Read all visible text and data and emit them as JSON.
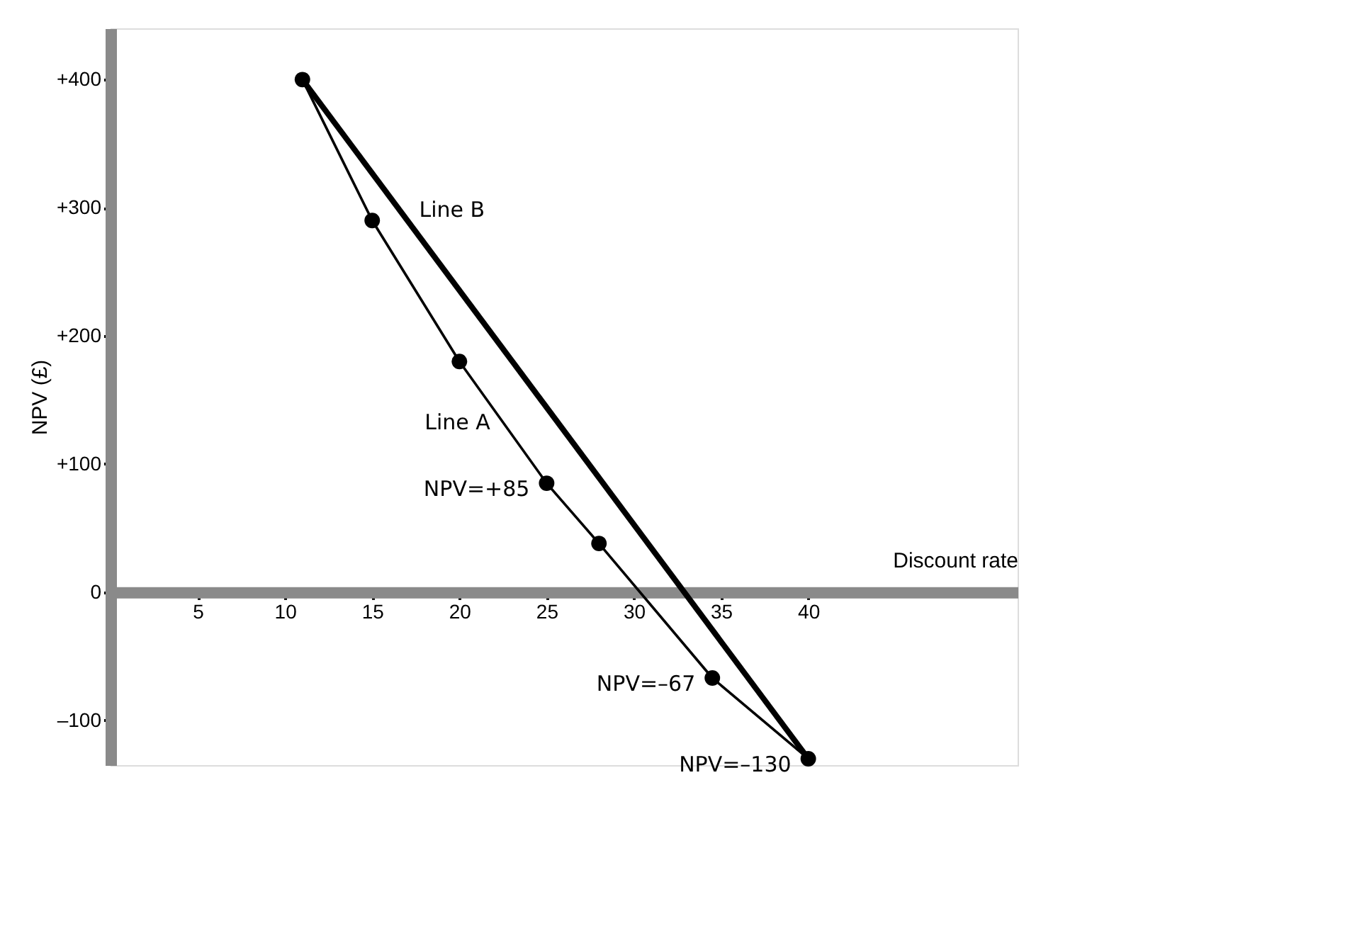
{
  "chart_data": {
    "type": "line",
    "xlabel": "Discount rate",
    "ylabel": "NPV (£)",
    "xlim": [
      0,
      52
    ],
    "ylim": [
      -135,
      440
    ],
    "xticks": [
      5,
      10,
      15,
      20,
      25,
      30,
      35,
      40
    ],
    "yticks": [
      {
        "value": 400,
        "label": "+400"
      },
      {
        "value": 300,
        "label": "+300"
      },
      {
        "value": 200,
        "label": "+200"
      },
      {
        "value": 100,
        "label": "+100"
      },
      0,
      {
        "value": -100,
        "label": "–100"
      }
    ],
    "grid": false,
    "legend": false,
    "series": [
      {
        "name": "Line A",
        "color": "#000000",
        "marker": "circle",
        "x": [
          11,
          15,
          20,
          25,
          28,
          34.5,
          40
        ],
        "values": [
          400,
          290,
          180,
          85,
          38,
          -67,
          -130
        ]
      },
      {
        "name": "Line B",
        "color": "#000000",
        "marker": "none",
        "x": [
          11,
          40
        ],
        "values": [
          400,
          -130
        ]
      }
    ],
    "annotations": [
      {
        "text": "NPV=+85",
        "x": 25,
        "y": 85
      },
      {
        "text": "NPV=–67",
        "x": 34.5,
        "y": -67
      },
      {
        "text": "NPV=–130",
        "x": 40,
        "y": -130
      }
    ]
  }
}
